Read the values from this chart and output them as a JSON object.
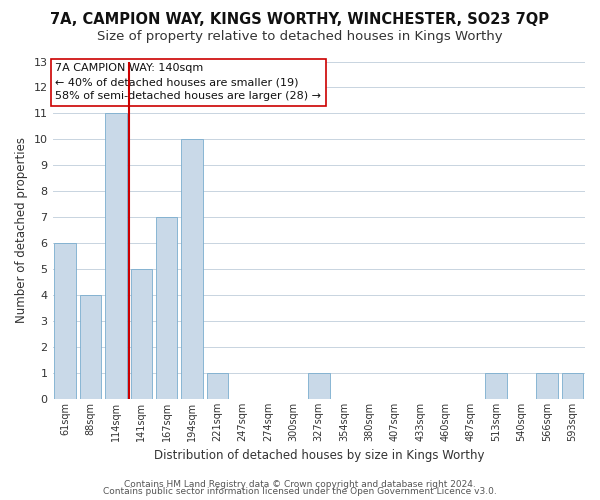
{
  "title": "7A, CAMPION WAY, KINGS WORTHY, WINCHESTER, SO23 7QP",
  "subtitle": "Size of property relative to detached houses in Kings Worthy",
  "xlabel": "Distribution of detached houses by size in Kings Worthy",
  "ylabel": "Number of detached properties",
  "bar_labels": [
    "61sqm",
    "88sqm",
    "114sqm",
    "141sqm",
    "167sqm",
    "194sqm",
    "221sqm",
    "247sqm",
    "274sqm",
    "300sqm",
    "327sqm",
    "354sqm",
    "380sqm",
    "407sqm",
    "433sqm",
    "460sqm",
    "487sqm",
    "513sqm",
    "540sqm",
    "566sqm",
    "593sqm"
  ],
  "bar_values": [
    6,
    4,
    11,
    5,
    7,
    10,
    1,
    0,
    0,
    0,
    1,
    0,
    0,
    0,
    0,
    0,
    0,
    1,
    0,
    1,
    1
  ],
  "bar_color": "#c9d9e8",
  "bar_edge_color": "#7aadce",
  "highlight_line_index": 2,
  "highlight_line_color": "#cc0000",
  "ylim": [
    0,
    13
  ],
  "yticks": [
    0,
    1,
    2,
    3,
    4,
    5,
    6,
    7,
    8,
    9,
    10,
    11,
    12,
    13
  ],
  "annotation_line1": "7A CAMPION WAY: 140sqm",
  "annotation_line2": "← 40% of detached houses are smaller (19)",
  "annotation_line3": "58% of semi-detached houses are larger (28) →",
  "footer_line1": "Contains HM Land Registry data © Crown copyright and database right 2024.",
  "footer_line2": "Contains public sector information licensed under the Open Government Licence v3.0.",
  "background_color": "#ffffff",
  "grid_color": "#c8d4e0",
  "title_fontsize": 10.5,
  "subtitle_fontsize": 9.5,
  "annotation_fontsize": 8,
  "footer_fontsize": 6.5,
  "ylabel_fontsize": 8.5,
  "xlabel_fontsize": 8.5
}
